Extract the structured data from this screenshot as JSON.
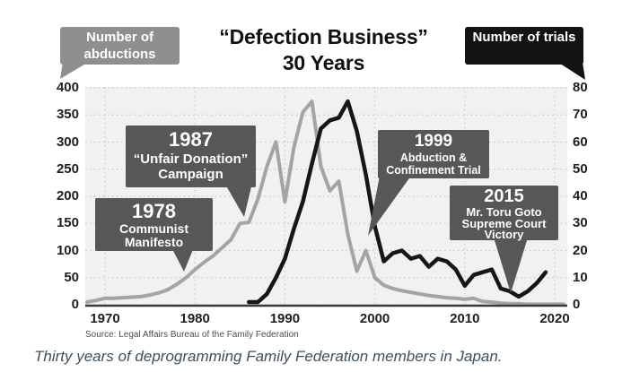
{
  "figure": {
    "title_line1": "“Defection Business”",
    "title_line2": "30 Years",
    "source": "Source: Legal Affairs Bureau of the Family Federation",
    "caption": "Thirty years of deprogramming Family Federation members in Japan."
  },
  "chart_data": {
    "type": "line",
    "title": "“Defection Business” 30 Years",
    "grid": "dotted",
    "x_axis": {
      "range": [
        1968,
        2021
      ],
      "ticks": [
        1970,
        1980,
        1990,
        2000,
        2010,
        2020
      ]
    },
    "y_left": {
      "label": "Number of abductions",
      "range": [
        0,
        400
      ],
      "ticks": [
        400,
        350,
        300,
        250,
        200,
        150,
        100,
        50,
        0
      ],
      "color": "#8f8f8f"
    },
    "y_right": {
      "label": "Number of trials",
      "range": [
        0,
        80
      ],
      "ticks": [
        80,
        70,
        60,
        50,
        40,
        30,
        20,
        10,
        0
      ],
      "color": "#131313"
    },
    "series": [
      {
        "name": "Number of abductions",
        "axis": "left",
        "color": "#a4a4a4",
        "points": [
          [
            1968,
            5
          ],
          [
            1969,
            8
          ],
          [
            1970,
            12
          ],
          [
            1971,
            12
          ],
          [
            1972,
            13
          ],
          [
            1973,
            14
          ],
          [
            1974,
            15
          ],
          [
            1975,
            18
          ],
          [
            1976,
            22
          ],
          [
            1977,
            28
          ],
          [
            1978,
            38
          ],
          [
            1979,
            50
          ],
          [
            1980,
            65
          ],
          [
            1981,
            78
          ],
          [
            1982,
            90
          ],
          [
            1983,
            105
          ],
          [
            1984,
            120
          ],
          [
            1985,
            150
          ],
          [
            1986,
            152
          ],
          [
            1987,
            195
          ],
          [
            1988,
            255
          ],
          [
            1989,
            300
          ],
          [
            1990,
            190
          ],
          [
            1991,
            290
          ],
          [
            1992,
            355
          ],
          [
            1993,
            375
          ],
          [
            1994,
            255
          ],
          [
            1995,
            210
          ],
          [
            1996,
            228
          ],
          [
            1997,
            130
          ],
          [
            1998,
            62
          ],
          [
            1999,
            100
          ],
          [
            2000,
            50
          ],
          [
            2001,
            36
          ],
          [
            2002,
            30
          ],
          [
            2003,
            26
          ],
          [
            2004,
            23
          ],
          [
            2005,
            20
          ],
          [
            2006,
            17
          ],
          [
            2007,
            15
          ],
          [
            2008,
            13
          ],
          [
            2009,
            12
          ],
          [
            2010,
            10
          ],
          [
            2011,
            12
          ],
          [
            2012,
            6
          ],
          [
            2013,
            5
          ],
          [
            2014,
            3
          ],
          [
            2015,
            2
          ],
          [
            2016,
            2
          ],
          [
            2017,
            1
          ],
          [
            2018,
            1
          ],
          [
            2019,
            1
          ],
          [
            2020,
            1
          ],
          [
            2021,
            1
          ]
        ]
      },
      {
        "name": "Number of trials",
        "axis": "right",
        "color": "#161616",
        "points": [
          [
            1986,
            1
          ],
          [
            1987,
            1
          ],
          [
            1988,
            4
          ],
          [
            1989,
            10
          ],
          [
            1990,
            17
          ],
          [
            1991,
            28
          ],
          [
            1992,
            38
          ],
          [
            1993,
            52
          ],
          [
            1994,
            65
          ],
          [
            1995,
            68
          ],
          [
            1996,
            69
          ],
          [
            1997,
            75
          ],
          [
            1998,
            64
          ],
          [
            1999,
            48
          ],
          [
            2000,
            29
          ],
          [
            2001,
            16
          ],
          [
            2002,
            19
          ],
          [
            2003,
            20
          ],
          [
            2004,
            17
          ],
          [
            2005,
            18
          ],
          [
            2006,
            14
          ],
          [
            2007,
            17
          ],
          [
            2008,
            16
          ],
          [
            2009,
            13
          ],
          [
            2010,
            7
          ],
          [
            2011,
            11
          ],
          [
            2012,
            12
          ],
          [
            2013,
            13
          ],
          [
            2014,
            6
          ],
          [
            2015,
            5
          ],
          [
            2016,
            3
          ],
          [
            2017,
            5
          ],
          [
            2018,
            8
          ],
          [
            2019,
            12
          ]
        ]
      }
    ],
    "annotations": [
      {
        "year_label": "1987",
        "lines": [
          "“Unfair Donation”",
          "Campaign"
        ]
      },
      {
        "year_label": "1978",
        "lines": [
          "Communist",
          "Manifesto"
        ]
      },
      {
        "year_label": "1999",
        "lines": [
          "Abduction &",
          "Confinement Trial"
        ]
      },
      {
        "year_label": "2015",
        "lines": [
          "Mr. Toru Goto",
          "Supreme Court",
          "Victory"
        ]
      }
    ]
  }
}
